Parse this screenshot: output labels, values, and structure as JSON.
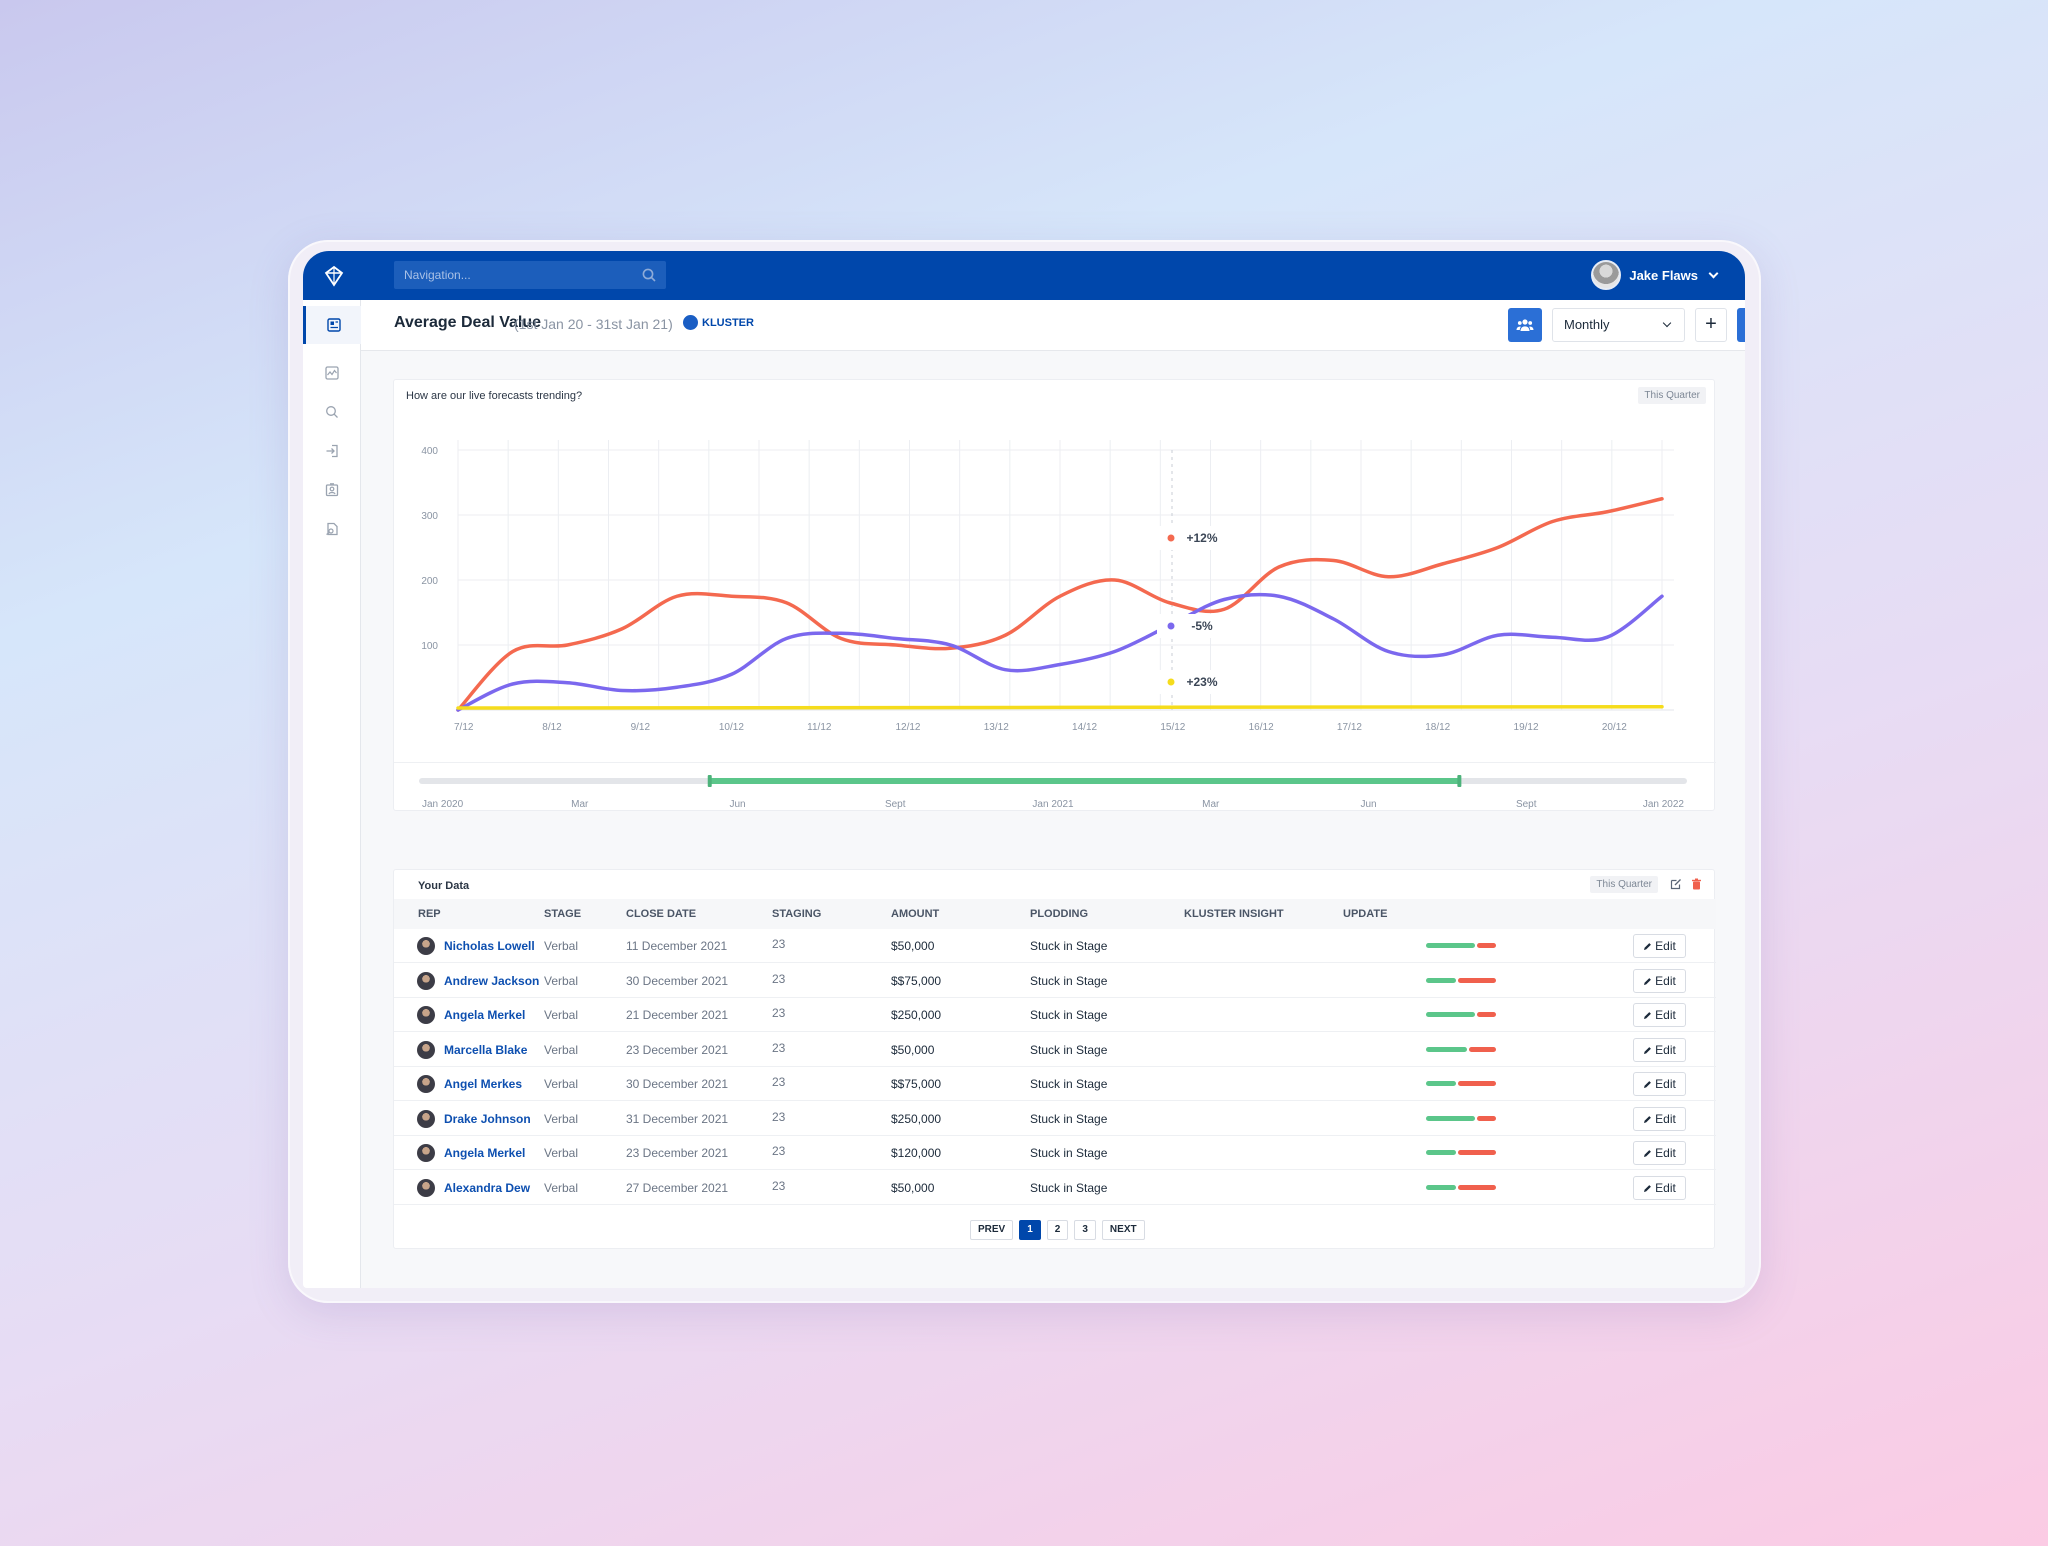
{
  "topbar": {
    "search_placeholder": "Navigation...",
    "user_name": "Jake Flaws"
  },
  "header": {
    "title": "Average Deal Value",
    "date_range": "(1st Jan 20 - 31st Jan 21)",
    "badge": "KLUSTER",
    "period_select": "Monthly",
    "plus_label": "+"
  },
  "chart_card": {
    "title": "How are our live forecasts trending?",
    "chip": "This Quarter"
  },
  "chart_data": {
    "type": "line",
    "x": [
      "7/12",
      "8/12",
      "9/12",
      "10/12",
      "11/12",
      "12/12",
      "13/12",
      "14/12",
      "15/12",
      "16/12",
      "17/12",
      "18/12",
      "19/12",
      "20/12"
    ],
    "ylim": [
      0,
      400
    ],
    "yticks": [
      100,
      200,
      300,
      400
    ],
    "grid": true,
    "series": [
      {
        "color": "#f4694f",
        "points": [
          [
            0,
            0
          ],
          [
            1,
            90
          ],
          [
            2,
            100
          ],
          [
            3,
            125
          ],
          [
            4,
            175
          ],
          [
            5,
            175
          ],
          [
            6,
            165
          ],
          [
            7,
            110
          ],
          [
            8,
            100
          ],
          [
            9,
            95
          ],
          [
            10,
            115
          ],
          [
            11,
            175
          ],
          [
            12,
            200
          ],
          [
            13,
            165
          ],
          [
            14,
            155
          ],
          [
            15,
            220
          ],
          [
            16,
            230
          ],
          [
            17,
            205
          ],
          [
            18,
            225
          ],
          [
            19,
            250
          ],
          [
            20,
            290
          ],
          [
            21,
            305
          ],
          [
            22,
            325
          ]
        ]
      },
      {
        "color": "#7b68ee",
        "points": [
          [
            0,
            0
          ],
          [
            1,
            40
          ],
          [
            2,
            42
          ],
          [
            3,
            30
          ],
          [
            4,
            35
          ],
          [
            5,
            55
          ],
          [
            6,
            110
          ],
          [
            7,
            118
          ],
          [
            8,
            110
          ],
          [
            9,
            100
          ],
          [
            10,
            62
          ],
          [
            11,
            70
          ],
          [
            12,
            90
          ],
          [
            13,
            130
          ],
          [
            14,
            170
          ],
          [
            15,
            175
          ],
          [
            16,
            140
          ],
          [
            17,
            90
          ],
          [
            18,
            85
          ],
          [
            19,
            115
          ],
          [
            20,
            112
          ],
          [
            21,
            112
          ],
          [
            22,
            175
          ]
        ]
      },
      {
        "color": "#f5dc1c",
        "points": [
          [
            0,
            3
          ],
          [
            22,
            5
          ]
        ]
      }
    ],
    "annotations": [
      {
        "label": "+12%",
        "color": "#f4694f"
      },
      {
        "label": "-5%",
        "color": "#7b68ee"
      },
      {
        "label": "+23%",
        "color": "#f5dc1c"
      }
    ],
    "range_slider": {
      "ticks": [
        "Jan 2020",
        "Mar",
        "Jun",
        "Sept",
        "Jan 2021",
        "Mar",
        "Jun",
        "Sept",
        "Jan 2022"
      ],
      "selected": [
        0.228,
        0.822
      ]
    }
  },
  "table": {
    "title": "Your Data",
    "chip": "This Quarter",
    "columns": [
      "REP",
      "STAGE",
      "CLOSE DATE",
      "STAGING",
      "AMOUNT",
      "PLODDING",
      "KLUSTER INSIGHT",
      "UPDATE"
    ],
    "rows": [
      {
        "rep": "Nicholas Lowell",
        "stage": "Verbal",
        "date": "11 December 2021",
        "staging": "23",
        "amount": "$50,000",
        "plodding": "Stuck in Stage",
        "insight": 0.72,
        "edit": "Edit"
      },
      {
        "rep": "Andrew Jackson",
        "stage": "Verbal",
        "date": "30 December 2021",
        "staging": "23",
        "amount": "$$75,000",
        "plodding": "Stuck in Stage",
        "insight": 0.44,
        "edit": "Edit"
      },
      {
        "rep": "Angela Merkel",
        "stage": "Verbal",
        "date": "21 December 2021",
        "staging": "23",
        "amount": "$250,000",
        "plodding": "Stuck in Stage",
        "insight": 0.72,
        "edit": "Edit"
      },
      {
        "rep": "Marcella Blake",
        "stage": "Verbal",
        "date": "23 December 2021",
        "staging": "23",
        "amount": "$50,000",
        "plodding": "Stuck in Stage",
        "insight": 0.6,
        "edit": "Edit"
      },
      {
        "rep": "Angel Merkes",
        "stage": "Verbal",
        "date": "30 December 2021",
        "staging": "23",
        "amount": "$$75,000",
        "plodding": "Stuck in Stage",
        "insight": 0.44,
        "edit": "Edit"
      },
      {
        "rep": "Drake Johnson",
        "stage": "Verbal",
        "date": "31 December 2021",
        "staging": "23",
        "amount": "$250,000",
        "plodding": "Stuck in Stage",
        "insight": 0.72,
        "edit": "Edit"
      },
      {
        "rep": "Angela Merkel",
        "stage": "Verbal",
        "date": "23 December 2021",
        "staging": "23",
        "amount": "$120,000",
        "plodding": "Stuck in Stage",
        "insight": 0.44,
        "edit": "Edit"
      },
      {
        "rep": "Alexandra Dew",
        "stage": "Verbal",
        "date": "27 December 2021",
        "staging": "23",
        "amount": "$50,000",
        "plodding": "Stuck in Stage",
        "insight": 0.44,
        "edit": "Edit"
      }
    ]
  },
  "pagination": {
    "prev": "PREV",
    "pages": [
      "1",
      "2",
      "3"
    ],
    "current": "1",
    "next": "NEXT"
  },
  "colors": {
    "brand": "#0047ab",
    "accent_button": "#2b6fd6",
    "insight_good": "#5bc68a",
    "insight_bad": "#f0604d",
    "range_selected": "#5bc68a"
  },
  "icons": {
    "logo": "kluster-logo-icon",
    "search": "search-icon",
    "sidebar": [
      "dashboard-icon",
      "activity-icon",
      "search-icon",
      "login-icon",
      "contacts-icon",
      "reports-icon"
    ],
    "team": "team-icon",
    "add_user": "add-user-icon",
    "edit": "pencil-icon",
    "delete": "trash-icon"
  }
}
